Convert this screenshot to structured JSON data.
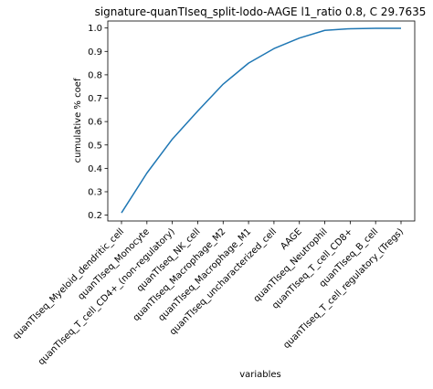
{
  "chart_data": {
    "type": "line",
    "title": "signature-quanTIseq_split-lodo-AAGE l1_ratio 0.8, C 29.7635",
    "xlabel": "variables",
    "ylabel": "cumulative % coef",
    "categories": [
      "quanTIseq_Myeloid_dendritic_cell",
      "quanTIseq_Monocyte",
      "quanTIseq_T_cell_CD4+_(non-regulatory)",
      "quanTIseq_NK_cell",
      "quanTIseq_Macrophage_M2",
      "quanTIseq_Macrophage_M1",
      "quanTIseq_uncharacterized_cell",
      "AAGE",
      "quanTIseq_Neutrophil",
      "quanTIseq_T_cell_CD8+",
      "quanTIseq_B_cell",
      "quanTIseq_T_cell_regulatory_(Tregs)"
    ],
    "series": [
      {
        "values": [
          0.21,
          0.38,
          0.525,
          0.645,
          0.76,
          0.85,
          0.912,
          0.957,
          0.99,
          0.997,
          0.999,
          0.999
        ],
        "color": "#1f77b4"
      }
    ],
    "yticks": [
      "0.2",
      "0.3",
      "0.4",
      "0.5",
      "0.6",
      "0.7",
      "0.8",
      "0.9",
      "1.0"
    ],
    "ylim": [
      0.175,
      1.03
    ],
    "grid": false,
    "legend": "none"
  }
}
